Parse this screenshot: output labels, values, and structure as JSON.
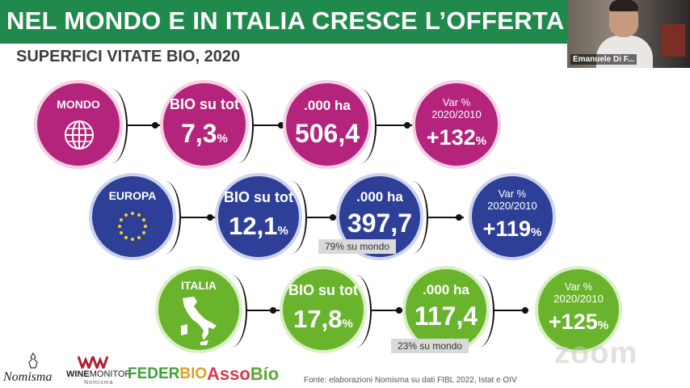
{
  "banner": {
    "title": "NEL MONDO E IN ITALIA CRESCE L’OFFERTA DI VINO BIO"
  },
  "video": {
    "participant_name": "Emanuele Di F..."
  },
  "slide": {
    "subtitle": "SUPERFICI VITATE BIO, 2020",
    "rows": [
      {
        "region": "MONDO",
        "region_icon": "globe-icon",
        "color": "#b4237c",
        "share_label": "BIO su tot",
        "share_value": "7,3",
        "share_unit": "%",
        "area_label": ".000 ha",
        "area_value": "506,4",
        "var_label_1": "Var %",
        "var_label_2": "2020/2010",
        "var_value": "+132",
        "var_unit": "%",
        "note": ""
      },
      {
        "region": "EUROPA",
        "region_icon": "eu-stars-icon",
        "color": "#2d3f97",
        "share_label": "BIO su tot",
        "share_value": "12,1",
        "share_unit": "%",
        "area_label": ".000 ha",
        "area_value": "397,7",
        "var_label_1": "Var %",
        "var_label_2": "2020/2010",
        "var_value": "+119",
        "var_unit": "%",
        "note": "79% su mondo"
      },
      {
        "region": "ITALIA",
        "region_icon": "italy-map-icon",
        "color": "#6ab42d",
        "share_label": "BIO su tot",
        "share_value": "17,8",
        "share_unit": "%",
        "area_label": ".000 ha",
        "area_value": "117,4",
        "var_label_1": "Var %",
        "var_label_2": "2020/2010",
        "var_value": "+125",
        "var_unit": "%",
        "note": "23% su mondo"
      }
    ],
    "source": "Fonte: elaborazioni Nomisma su dati FIBL 2022, Istat e OIV"
  },
  "logos": {
    "nomisma": "Nomisma",
    "winemonitor_wine": "WINE",
    "winemonitor_monitor": "MONITOR",
    "winemonitor_sub": "Nomisma",
    "federbio_feder": "FEDER",
    "federbio_bio": "BIO",
    "assobio_asso": "Asso",
    "assobio_bio": "Bío"
  },
  "watermark": "zoom"
}
